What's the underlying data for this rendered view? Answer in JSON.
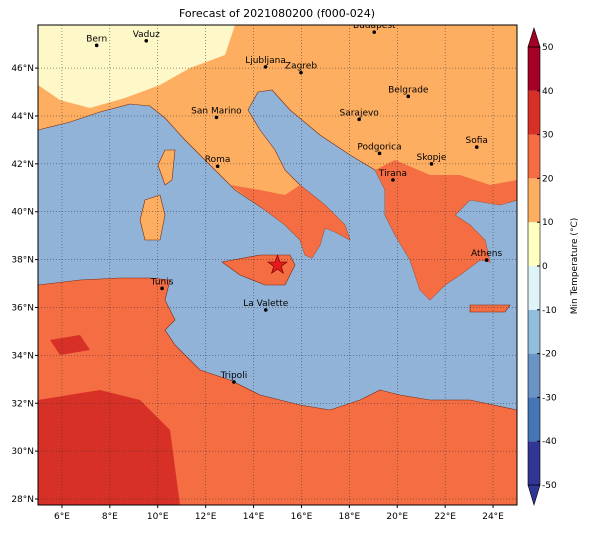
{
  "title": "Forecast of 2021080200 (f000-024)",
  "map": {
    "lonlim": [
      5,
      25
    ],
    "latlim": [
      27.75,
      47.8
    ],
    "grid": true,
    "xticks": [
      {
        "value": 6,
        "label": "6°E"
      },
      {
        "value": 8,
        "label": "8°E"
      },
      {
        "value": 10,
        "label": "10°E"
      },
      {
        "value": 12,
        "label": "12°E"
      },
      {
        "value": 14,
        "label": "14°E"
      },
      {
        "value": 16,
        "label": "16°E"
      },
      {
        "value": 18,
        "label": "18°E"
      },
      {
        "value": 20,
        "label": "20°E"
      },
      {
        "value": 22,
        "label": "22°E"
      },
      {
        "value": 24,
        "label": "24°E"
      }
    ],
    "yticks": [
      {
        "value": 28,
        "label": "28°N"
      },
      {
        "value": 30,
        "label": "30°N"
      },
      {
        "value": 32,
        "label": "32°N"
      },
      {
        "value": 34,
        "label": "34°N"
      },
      {
        "value": 36,
        "label": "36°N"
      },
      {
        "value": 38,
        "label": "38°N"
      },
      {
        "value": 40,
        "label": "40°N"
      },
      {
        "value": 42,
        "label": "42°N"
      },
      {
        "value": 44,
        "label": "44°N"
      },
      {
        "value": 46,
        "label": "46°N"
      }
    ]
  },
  "cities": [
    {
      "name": "Bern",
      "lon": 7.45,
      "lat": 46.95
    },
    {
      "name": "Vaduz",
      "lon": 9.52,
      "lat": 47.14
    },
    {
      "name": "Budapest",
      "lon": 19.04,
      "lat": 47.5
    },
    {
      "name": "Ljubljana",
      "lon": 14.5,
      "lat": 46.05
    },
    {
      "name": "Zagreb",
      "lon": 15.98,
      "lat": 45.81
    },
    {
      "name": "Belgrade",
      "lon": 20.46,
      "lat": 44.82
    },
    {
      "name": "San Marino",
      "lon": 12.45,
      "lat": 43.94
    },
    {
      "name": "Sarajevo",
      "lon": 18.41,
      "lat": 43.86
    },
    {
      "name": "Sofia",
      "lon": 23.32,
      "lat": 42.7
    },
    {
      "name": "Podgorica",
      "lon": 19.26,
      "lat": 42.44
    },
    {
      "name": "Skopje",
      "lon": 21.43,
      "lat": 42.0
    },
    {
      "name": "Roma",
      "lon": 12.5,
      "lat": 41.9
    },
    {
      "name": "Tirana",
      "lon": 19.82,
      "lat": 41.33
    },
    {
      "name": "Athens",
      "lon": 23.73,
      "lat": 37.98
    },
    {
      "name": "Tunis",
      "lon": 10.18,
      "lat": 36.8
    },
    {
      "name": "La Valette",
      "lon": 14.51,
      "lat": 35.9
    },
    {
      "name": "Tripoli",
      "lon": 13.18,
      "lat": 32.89
    }
  ],
  "marker": {
    "lon": 15.0,
    "lat": 37.77,
    "color": "#e41a1c"
  },
  "colorbar": {
    "label": "Min Temperature (°C)",
    "lim": [
      -50,
      50
    ],
    "ticks": [
      -50,
      -40,
      -30,
      -20,
      -10,
      0,
      10,
      20,
      30,
      40,
      50
    ],
    "colors": [
      "#313695",
      "#4575b4",
      "#6a94c4",
      "#91bfdb",
      "#e0f3f8",
      "#ffffbf",
      "#fdae61",
      "#f46d43",
      "#d73027",
      "#a50026"
    ]
  }
}
